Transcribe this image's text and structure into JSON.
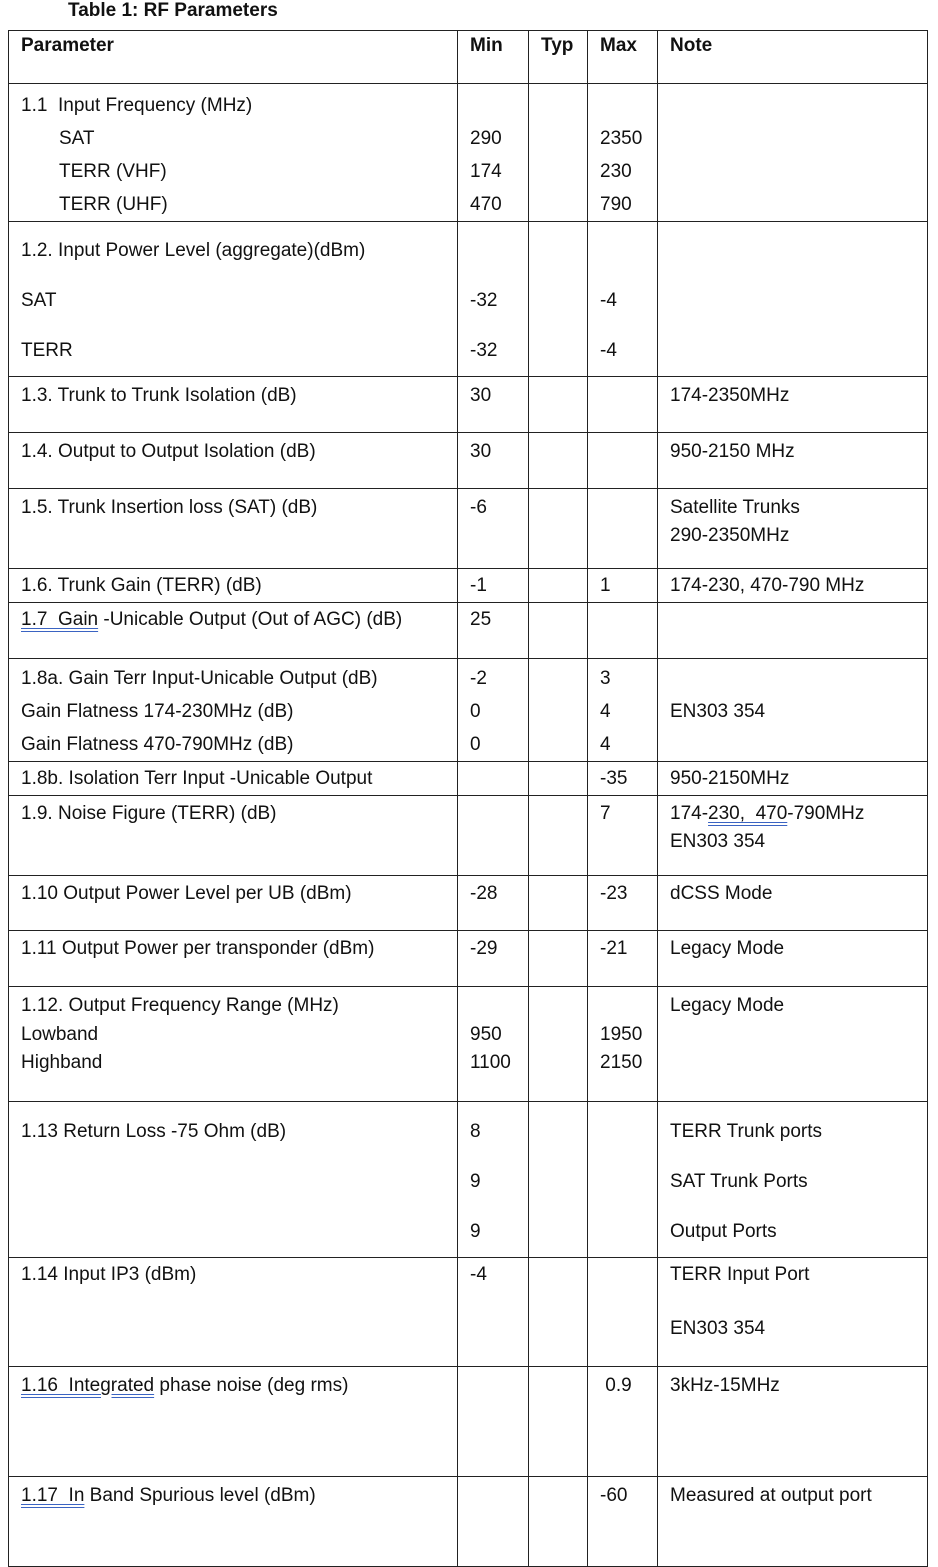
{
  "title": "Table 1: RF Parameters",
  "headers": {
    "param": "Parameter",
    "min": "Min",
    "typ": "Typ",
    "max": "Max",
    "note": "Note"
  },
  "rows": [
    {
      "param": [
        "1.1  Input Frequency (MHz)",
        {
          "indent": true,
          "t": "SAT"
        },
        {
          "indent": true,
          "t": "TERR (VHF)"
        },
        {
          "indent": true,
          "t": "TERR (UHF)"
        }
      ],
      "min": [
        "",
        "290",
        "174",
        "470"
      ],
      "typ": [],
      "max": [
        "",
        "2350",
        "230",
        "790"
      ],
      "note": []
    },
    {
      "param": [
        "1.2. Input Power Level (aggregate)(dBm)",
        "SAT",
        "TERR"
      ],
      "min": [
        "",
        "-32",
        "-32"
      ],
      "typ": [],
      "max": [
        "",
        "-4",
        "-4"
      ],
      "note": []
    },
    {
      "param": [
        "1.3. Trunk to Trunk Isolation (dB)"
      ],
      "min": [
        "30"
      ],
      "typ": [],
      "max": [],
      "note": [
        "174-2350MHz"
      ]
    },
    {
      "param": [
        "1.4. Output to Output Isolation (dB)"
      ],
      "min": [
        "30"
      ],
      "typ": [],
      "max": [],
      "note": [
        "950-2150 MHz"
      ]
    },
    {
      "param": [
        "1.5. Trunk Insertion loss (SAT) (dB)"
      ],
      "min": [
        "-6"
      ],
      "typ": [],
      "max": [],
      "note": [
        "Satellite Trunks",
        "290-2350MHz"
      ]
    },
    {
      "param": [
        "1.6. Trunk Gain (TERR) (dB)"
      ],
      "min": [
        "-1"
      ],
      "typ": [],
      "max": [
        "1"
      ],
      "note": [
        "174-230, 470-790 MHz"
      ]
    },
    {
      "param": [
        {
          "u": "1.7  Gain",
          "post": " -Unicable Output (Out of AGC) (dB)"
        }
      ],
      "min": [
        "25"
      ],
      "typ": [],
      "max": [],
      "note": []
    },
    {
      "param": [
        "1.8a. Gain Terr Input-Unicable Output (dB)",
        "Gain Flatness 174-230MHz (dB)",
        "Gain Flatness 470-790MHz (dB)"
      ],
      "min": [
        "-2",
        "0",
        "0"
      ],
      "typ": [],
      "max": [
        "3",
        "4",
        "4"
      ],
      "note": [
        "",
        "EN303 354"
      ]
    },
    {
      "param": [
        "1.8b. Isolation Terr Input -Unicable Output"
      ],
      "min": [],
      "typ": [],
      "max": [
        "-35"
      ],
      "note": [
        "950-2150MHz"
      ]
    },
    {
      "param": [
        "1.9. Noise Figure (TERR) (dB)"
      ],
      "min": [],
      "typ": [],
      "max": [
        "7"
      ],
      "note": [
        {
          "pre": "174-",
          "u": "230,  470",
          "post": "-790MHz"
        },
        "EN303 354"
      ]
    },
    {
      "param": [
        "1.10 Output Power Level per UB (dBm)"
      ],
      "min": [
        "-28"
      ],
      "typ": [],
      "max": [
        "-23"
      ],
      "note": [
        "dCSS Mode"
      ]
    },
    {
      "param": [
        "1.11 Output Power per transponder (dBm)"
      ],
      "min": [
        "-29"
      ],
      "typ": [],
      "max": [
        "-21"
      ],
      "note": [
        "Legacy Mode"
      ]
    },
    {
      "param": [
        "1.12. Output Frequency Range (MHz)",
        "Lowband",
        "Highband"
      ],
      "min": [
        "",
        "950",
        "1100"
      ],
      "typ": [],
      "max": [
        "",
        "1950",
        "2150"
      ],
      "note": [
        "Legacy Mode"
      ]
    },
    {
      "param": [
        "1.13 Return Loss -75 Ohm (dB)"
      ],
      "min": [
        "8",
        "9",
        "9"
      ],
      "typ": [],
      "max": [],
      "note": [
        "TERR Trunk ports",
        "SAT Trunk Ports",
        "Output Ports"
      ]
    },
    {
      "param": [
        "1.14 Input IP3 (dBm)"
      ],
      "min": [
        "-4"
      ],
      "typ": [],
      "max": [],
      "note": [
        "TERR Input Port",
        "",
        "EN303 354"
      ]
    },
    {
      "param": [
        {
          "u": "1.16  Integrated",
          "post": " phase noise (deg rms)"
        }
      ],
      "min": [],
      "typ": [],
      "max": [
        " 0.9"
      ],
      "note": [
        "3kHz-15MHz"
      ]
    },
    {
      "param": [
        {
          "u": "1.17  In",
          "post": " Band Spurious level (dBm)"
        }
      ],
      "min": [],
      "typ": [],
      "max": [
        "-60"
      ],
      "note": [
        "Measured at output port"
      ]
    }
  ]
}
